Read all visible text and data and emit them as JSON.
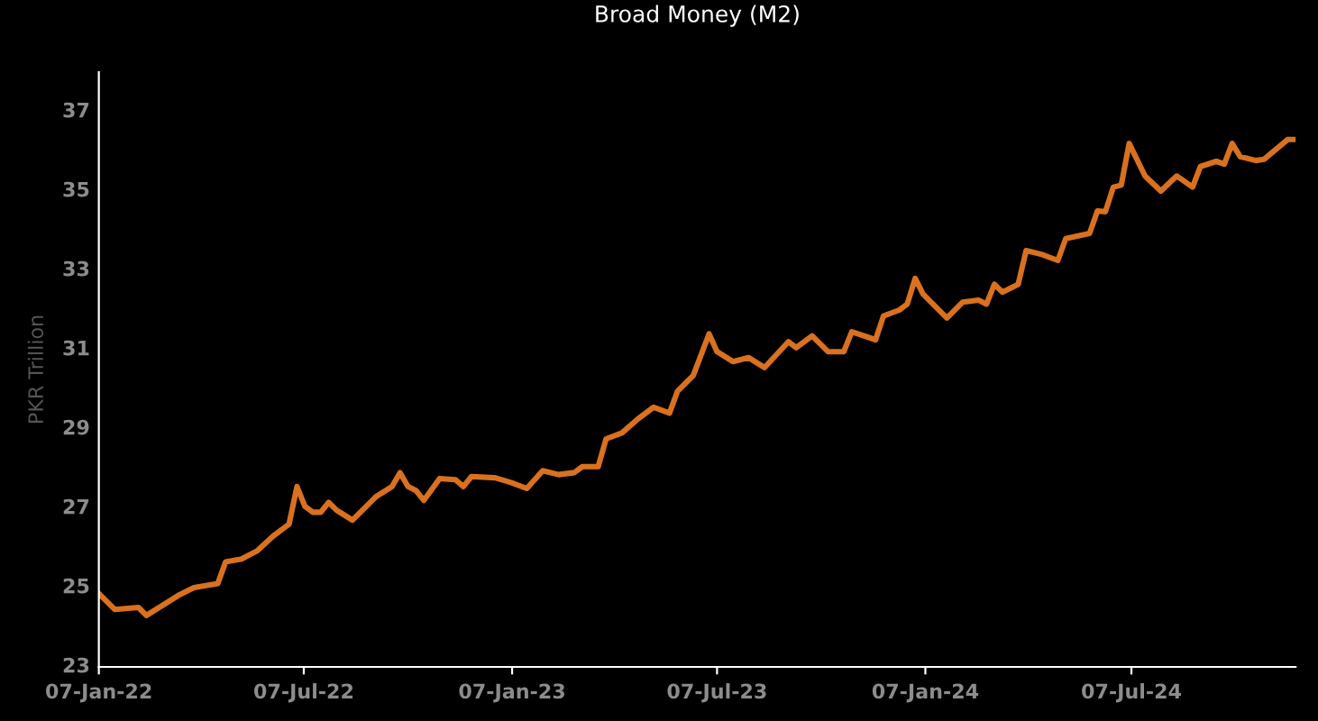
{
  "chart_data": {
    "type": "line",
    "title": "Broad Money (M2)",
    "ylabel": "PKR Trillion",
    "x": [
      "2022-01-07",
      "2022-01-21",
      "2022-02-11",
      "2022-02-18",
      "2022-03-04",
      "2022-03-18",
      "2022-04-01",
      "2022-04-22",
      "2022-04-29",
      "2022-05-13",
      "2022-05-27",
      "2022-06-10",
      "2022-06-24",
      "2022-07-01",
      "2022-07-08",
      "2022-07-15",
      "2022-07-22",
      "2022-07-29",
      "2022-08-05",
      "2022-08-19",
      "2022-09-02",
      "2022-09-09",
      "2022-09-23",
      "2022-09-30",
      "2022-10-07",
      "2022-10-14",
      "2022-10-21",
      "2022-11-04",
      "2022-11-18",
      "2022-11-25",
      "2022-12-02",
      "2022-12-23",
      "2023-01-06",
      "2023-01-20",
      "2023-02-03",
      "2023-02-17",
      "2023-03-03",
      "2023-03-10",
      "2023-03-24",
      "2023-03-31",
      "2023-04-14",
      "2023-04-28",
      "2023-05-12",
      "2023-05-26",
      "2023-06-02",
      "2023-06-16",
      "2023-06-30",
      "2023-07-07",
      "2023-07-21",
      "2023-08-04",
      "2023-08-18",
      "2023-09-08",
      "2023-09-15",
      "2023-09-29",
      "2023-10-13",
      "2023-10-27",
      "2023-11-03",
      "2023-11-24",
      "2023-12-01",
      "2023-12-15",
      "2023-12-22",
      "2023-12-29",
      "2024-01-05",
      "2024-01-26",
      "2024-02-09",
      "2024-02-23",
      "2024-03-01",
      "2024-03-08",
      "2024-03-15",
      "2024-03-29",
      "2024-04-05",
      "2024-04-19",
      "2024-05-03",
      "2024-05-10",
      "2024-05-31",
      "2024-06-07",
      "2024-06-14",
      "2024-06-21",
      "2024-06-28",
      "2024-07-05",
      "2024-07-19",
      "2024-08-02",
      "2024-08-16",
      "2024-08-30",
      "2024-09-06",
      "2024-09-20",
      "2024-09-27",
      "2024-10-04",
      "2024-10-11",
      "2024-10-25",
      "2024-11-01",
      "2024-11-22",
      "2024-11-29"
    ],
    "series": [
      {
        "color": "#d9711f",
        "values": [
          24.85,
          24.45,
          24.5,
          24.3,
          24.55,
          24.8,
          25.0,
          25.1,
          25.65,
          25.72,
          25.93,
          26.3,
          26.6,
          27.55,
          27.05,
          26.9,
          26.9,
          27.15,
          26.95,
          26.7,
          27.1,
          27.3,
          27.55,
          27.9,
          27.55,
          27.45,
          27.2,
          27.75,
          27.72,
          27.55,
          27.8,
          27.77,
          27.65,
          27.5,
          27.95,
          27.85,
          27.9,
          28.05,
          28.05,
          28.75,
          28.9,
          29.25,
          29.55,
          29.4,
          29.95,
          30.35,
          31.4,
          30.95,
          30.7,
          30.8,
          30.55,
          31.2,
          31.05,
          31.35,
          30.95,
          30.95,
          31.45,
          31.25,
          31.85,
          32.0,
          32.15,
          32.8,
          32.4,
          31.8,
          32.2,
          32.25,
          32.15,
          32.65,
          32.45,
          32.65,
          33.5,
          33.4,
          33.25,
          33.8,
          33.93,
          34.5,
          34.48,
          35.1,
          35.15,
          36.2,
          35.38,
          35.0,
          35.38,
          35.1,
          35.62,
          35.75,
          35.68,
          36.2,
          35.87,
          35.77,
          35.8,
          36.3,
          36.3
        ]
      }
    ],
    "xlim": [
      "2022-01-07",
      "2024-11-29"
    ],
    "xticks": [
      {
        "value": "2022-01-07",
        "label": "07-Jan-22"
      },
      {
        "value": "2022-07-07",
        "label": "07-Jul-22"
      },
      {
        "value": "2023-01-07",
        "label": "07-Jan-23"
      },
      {
        "value": "2023-07-07",
        "label": "07-Jul-23"
      },
      {
        "value": "2024-01-07",
        "label": "07-Jan-24"
      },
      {
        "value": "2024-07-07",
        "label": "07-Jul-24"
      }
    ],
    "ylim": [
      23,
      38
    ],
    "yticks": [
      23,
      25,
      27,
      29,
      31,
      33,
      35,
      37
    ],
    "grid": false,
    "legend": false,
    "marker": "none",
    "line_style": "solid"
  }
}
